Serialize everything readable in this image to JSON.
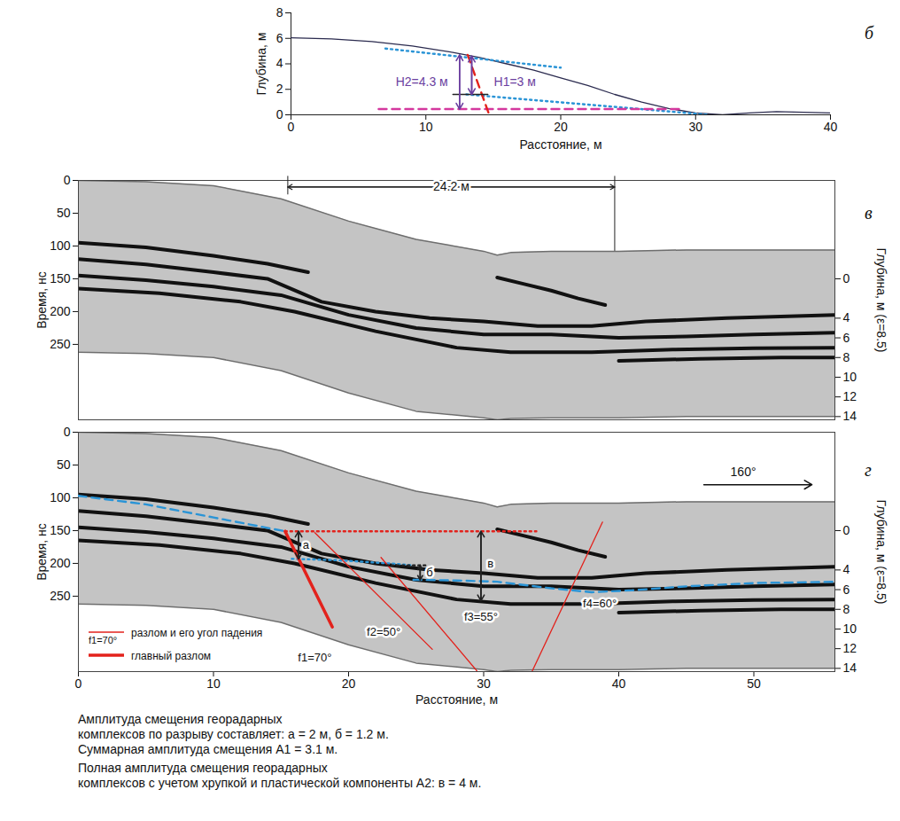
{
  "chart_data": [
    {
      "type": "line",
      "panel": "б",
      "xlabel": "Расстояние, м",
      "ylabel": "Глубина, м",
      "xlim": [
        0,
        40
      ],
      "ylim": [
        0,
        8
      ],
      "xticks": [
        0,
        10,
        20,
        30,
        40
      ],
      "yticks": [
        0,
        2,
        4,
        6,
        8
      ],
      "lines": [
        {
          "color": "#2b2b4f",
          "line_style": "solid",
          "points": [
            [
              0,
              6.05
            ],
            [
              3,
              5.95
            ],
            [
              6,
              5.75
            ],
            [
              9,
              5.4
            ],
            [
              12,
              4.9
            ],
            [
              14,
              4.5
            ],
            [
              16,
              4.0
            ],
            [
              18,
              3.5
            ],
            [
              20,
              2.9
            ],
            [
              22,
              2.3
            ],
            [
              24,
              1.6
            ],
            [
              26,
              1.0
            ],
            [
              28,
              0.5
            ],
            [
              30,
              0.15
            ],
            [
              32,
              0.0
            ],
            [
              34,
              0.15
            ],
            [
              36,
              0.25
            ],
            [
              38,
              0.2
            ],
            [
              40,
              0.15
            ]
          ]
        },
        {
          "color": "#2a94d6",
          "line_style": "dotted",
          "points": [
            [
              7,
              5.2
            ],
            [
              20,
              3.7
            ]
          ]
        },
        {
          "color": "#2a94d6",
          "line_style": "dotted",
          "points": [
            [
              13,
              1.6
            ],
            [
              31,
              0.0
            ]
          ]
        },
        {
          "color": "#d4389e",
          "line_style": "dashed",
          "points": [
            [
              6.5,
              0.45
            ],
            [
              29,
              0.45
            ]
          ]
        },
        {
          "color": "#e3221c",
          "line_style": "dashed",
          "points": [
            [
              13.1,
              4.7
            ],
            [
              14.7,
              0.0
            ]
          ]
        },
        {
          "color": "#222222",
          "line_style": "solid",
          "points": [
            [
              12,
              1.6
            ],
            [
              14.6,
              1.6
            ]
          ]
        }
      ],
      "arrows": [
        {
          "x": 12.5,
          "y1": 4.7,
          "y2": 0.45,
          "color": "#6b3fa0"
        },
        {
          "x": 13.4,
          "y1": 4.6,
          "y2": 1.6,
          "color": "#6b3fa0"
        }
      ],
      "texts": [
        {
          "x": 9.7,
          "y": 2.6,
          "text": "H2=4.3 м",
          "color": "#6b3fa0"
        },
        {
          "x": 16.6,
          "y": 2.6,
          "text": "H1=3 м",
          "color": "#6b3fa0"
        }
      ]
    },
    {
      "type": "section",
      "panel": "в",
      "tick_labels": "y",
      "ylabel": "Время, нс",
      "y2label": "Глубина, м (ε=8.5)",
      "xlim": [
        0,
        56
      ],
      "ylim": [
        0,
        365
      ],
      "xticks": [
        0,
        10,
        20,
        30,
        40,
        50
      ],
      "yticks": [
        0,
        50,
        100,
        150,
        200,
        250
      ],
      "y2lim": [
        -10,
        14.33
      ],
      "y2ticks": [
        0,
        4,
        6,
        8,
        10,
        12,
        14
      ],
      "section": {
        "x": [
          0,
          5,
          10,
          15,
          20,
          25,
          30,
          31,
          32,
          35,
          40,
          45,
          50,
          56
        ],
        "top": [
          0,
          2,
          8,
          28,
          62,
          90,
          108,
          114,
          110,
          108,
          108,
          106,
          106,
          106
        ],
        "bottom": [
          262,
          264,
          270,
          290,
          324,
          352,
          362,
          365,
          363,
          362,
          362,
          360,
          360,
          360
        ]
      },
      "reflectors": [
        [
          [
            0,
            95
          ],
          [
            5,
            102
          ],
          [
            10,
            115
          ],
          [
            14,
            127
          ],
          [
            17,
            140
          ]
        ],
        [
          [
            0,
            120
          ],
          [
            5,
            128
          ],
          [
            10,
            140
          ],
          [
            14,
            150
          ],
          [
            18,
            185
          ],
          [
            22,
            200
          ],
          [
            26,
            210
          ],
          [
            30,
            215
          ],
          [
            34,
            222
          ],
          [
            38,
            222
          ],
          [
            42,
            215
          ],
          [
            48,
            210
          ],
          [
            56,
            205
          ]
        ],
        [
          [
            0,
            145
          ],
          [
            5,
            152
          ],
          [
            10,
            162
          ],
          [
            15,
            175
          ],
          [
            20,
            205
          ],
          [
            25,
            225
          ],
          [
            30,
            235
          ],
          [
            35,
            235
          ],
          [
            40,
            240
          ],
          [
            45,
            238
          ],
          [
            50,
            235
          ],
          [
            56,
            232
          ]
        ],
        [
          [
            0,
            165
          ],
          [
            6,
            172
          ],
          [
            12,
            185
          ],
          [
            16,
            200
          ],
          [
            22,
            230
          ],
          [
            28,
            255
          ],
          [
            32,
            262
          ],
          [
            38,
            262
          ],
          [
            44,
            258
          ],
          [
            50,
            256
          ],
          [
            56,
            255
          ]
        ],
        [
          [
            31,
            148
          ],
          [
            33,
            158
          ],
          [
            35,
            168
          ],
          [
            37,
            180
          ],
          [
            39,
            190
          ]
        ],
        [
          [
            40,
            275
          ],
          [
            46,
            272
          ],
          [
            52,
            270
          ],
          [
            56,
            270
          ]
        ]
      ],
      "span": {
        "x1": 15.5,
        "x2": 39.7,
        "y": 10,
        "end1": 22,
        "end2": 108,
        "label": "24.2 м"
      }
    },
    {
      "type": "section",
      "panel": "г",
      "xlabel": "Расстояние, м",
      "ylabel": "Время, нс",
      "y2label": "Глубина, м (ε=8.5)",
      "xlim": [
        0,
        56
      ],
      "ylim": [
        0,
        365
      ],
      "xticks": [
        0,
        10,
        20,
        30,
        40,
        50
      ],
      "yticks": [
        0,
        50,
        100,
        150,
        200,
        250
      ],
      "y2lim": [
        -10,
        14.33
      ],
      "y2ticks": [
        0,
        4,
        6,
        8,
        10,
        12,
        14
      ],
      "section": {
        "x": [
          0,
          5,
          10,
          15,
          20,
          25,
          30,
          31,
          32,
          35,
          40,
          45,
          50,
          56
        ],
        "top": [
          0,
          2,
          8,
          28,
          62,
          90,
          108,
          114,
          110,
          108,
          108,
          106,
          106,
          106
        ],
        "bottom": [
          262,
          264,
          270,
          290,
          324,
          352,
          362,
          365,
          363,
          362,
          362,
          360,
          360,
          360
        ]
      },
      "reflectors": [
        [
          [
            0,
            95
          ],
          [
            5,
            102
          ],
          [
            10,
            115
          ],
          [
            14,
            127
          ],
          [
            17,
            140
          ]
        ],
        [
          [
            0,
            120
          ],
          [
            5,
            128
          ],
          [
            10,
            140
          ],
          [
            14,
            150
          ],
          [
            18,
            185
          ],
          [
            22,
            200
          ],
          [
            26,
            210
          ],
          [
            30,
            215
          ],
          [
            34,
            222
          ],
          [
            38,
            222
          ],
          [
            42,
            215
          ],
          [
            48,
            210
          ],
          [
            56,
            205
          ]
        ],
        [
          [
            0,
            145
          ],
          [
            5,
            152
          ],
          [
            10,
            162
          ],
          [
            15,
            175
          ],
          [
            20,
            205
          ],
          [
            25,
            225
          ],
          [
            30,
            235
          ],
          [
            35,
            235
          ],
          [
            40,
            240
          ],
          [
            45,
            238
          ],
          [
            50,
            235
          ],
          [
            56,
            232
          ]
        ],
        [
          [
            0,
            165
          ],
          [
            6,
            172
          ],
          [
            12,
            185
          ],
          [
            16,
            200
          ],
          [
            22,
            230
          ],
          [
            28,
            255
          ],
          [
            32,
            262
          ],
          [
            38,
            262
          ],
          [
            44,
            258
          ],
          [
            50,
            256
          ],
          [
            56,
            255
          ]
        ],
        [
          [
            31,
            148
          ],
          [
            33,
            158
          ],
          [
            35,
            168
          ],
          [
            37,
            180
          ],
          [
            39,
            190
          ]
        ],
        [
          [
            40,
            275
          ],
          [
            46,
            272
          ],
          [
            52,
            270
          ],
          [
            56,
            270
          ]
        ]
      ],
      "lines": [
        {
          "color": "#2a94d6",
          "line_style": "dashed",
          "points": [
            [
              0,
              97
            ],
            [
              5,
              110
            ],
            [
              10,
              130
            ],
            [
              15.3,
              151
            ]
          ]
        },
        {
          "color": "#2a94d6",
          "line_style": "dotted",
          "points": [
            [
              15.8,
              193
            ],
            [
              19,
              195
            ],
            [
              23,
              200
            ],
            [
              24.8,
              203
            ]
          ]
        },
        {
          "color": "#2a94d6",
          "line_style": "dashed",
          "points": [
            [
              24.8,
              225
            ],
            [
              28,
              226
            ],
            [
              31,
              228
            ],
            [
              35,
              238
            ],
            [
              38,
              244
            ],
            [
              41,
              241
            ],
            [
              45,
              235
            ],
            [
              50,
              230
            ],
            [
              56,
              228
            ]
          ]
        },
        {
          "color": "#e3221c",
          "line_style": "thick",
          "points": [
            [
              15.3,
              151
            ],
            [
              18.8,
              297
            ]
          ]
        },
        {
          "color": "#e3221c",
          "line_style": "solid",
          "points": [
            [
              17.5,
              153
            ],
            [
              26.2,
              331
            ]
          ]
        },
        {
          "color": "#e3221c",
          "line_style": "solid",
          "points": [
            [
              22.4,
              191
            ],
            [
              29.5,
              364
            ]
          ]
        },
        {
          "color": "#e3221c",
          "line_style": "solid",
          "points": [
            [
              38.8,
              137
            ],
            [
              33.6,
              364
            ]
          ]
        },
        {
          "color": "#e3221c",
          "line_style": "dotted",
          "points": [
            [
              15.3,
              151
            ],
            [
              33.9,
              151
            ]
          ]
        },
        {
          "color": "#222222",
          "line_style": "dotted",
          "points": [
            [
              22.8,
              203
            ],
            [
              25.8,
              203
            ]
          ]
        }
      ],
      "arrows": [
        {
          "x": 16.3,
          "y1": 151,
          "y2": 193,
          "color": "#222222"
        },
        {
          "x": 25.3,
          "y1": 203,
          "y2": 225,
          "color": "#222222"
        },
        {
          "x": 29.8,
          "y1": 151,
          "y2": 257,
          "color": "#222222"
        }
      ],
      "texts": [
        {
          "x": 16.85,
          "y": 172,
          "text": "а",
          "color": "#111111"
        },
        {
          "x": 26.0,
          "y": 214,
          "text": "б",
          "color": "#111111"
        },
        {
          "x": 30.5,
          "y": 200,
          "text": "в",
          "color": "#111111"
        },
        {
          "x": 17.5,
          "y": 344,
          "text": "f1=70°",
          "color": "#111111"
        },
        {
          "x": 22.6,
          "y": 304,
          "text": "f2=50°",
          "color": "#111111"
        },
        {
          "x": 29.8,
          "y": 281,
          "text": "f3=55°",
          "color": "#111111"
        },
        {
          "x": 38.6,
          "y": 262,
          "text": "f4=60°",
          "color": "#111111"
        }
      ],
      "direction": {
        "x1": 46.3,
        "x2": 54.3,
        "y": 80,
        "label": "160°"
      },
      "legend": "bottom-left",
      "legend_items": [
        {
          "sample_text": "f1=70°",
          "text": "разлом и его угол падения",
          "color": "#e3221c",
          "line_style": "solid"
        },
        {
          "text": "главный разлом",
          "color": "#e3221c",
          "line_style": "thick"
        }
      ]
    }
  ],
  "caption": [
    [
      "Амплитуда смещения георадарных",
      "комплексов по разрыву составляет: а = 2 м, б = 1.2 м.",
      "Суммарная амплитуда смещения А1 = 3.1 м."
    ],
    [
      "Полная амплитуда смещения георадарных",
      "комплексов с учетом хрупкой и пластической компоненты А2: в = 4 м."
    ]
  ]
}
